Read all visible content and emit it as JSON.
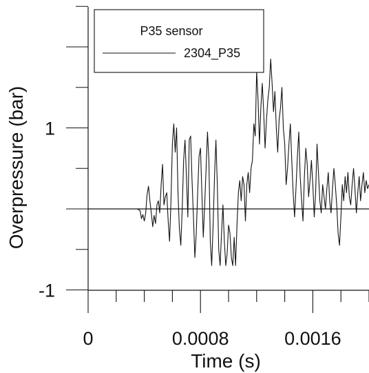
{
  "chart_data": {
    "type": "line",
    "xlabel": "Time (s)",
    "ylabel": "Overpressure (bar)",
    "xlim": [
      0,
      0.002
    ],
    "ylim": [
      -1,
      2.5
    ],
    "x_ticks": [
      0,
      0.0008,
      0.0016
    ],
    "x_tick_labels": [
      "0",
      "0.0008",
      "0.0016"
    ],
    "y_ticks": [
      -1,
      1
    ],
    "y_tick_labels": [
      "-1",
      "1"
    ],
    "reference_line_y": 0,
    "grid": false,
    "legend": {
      "position": "top-left",
      "title": "P35 sensor",
      "entries": [
        "2304_P35"
      ]
    },
    "series": [
      {
        "name": "2304_P35",
        "color": "#111111",
        "points": [
          [
            0.0,
            0.0
          ],
          [
            0.00035,
            0.0
          ],
          [
            0.00037,
            -0.02
          ],
          [
            0.00038,
            -0.12
          ],
          [
            0.00039,
            -0.07
          ],
          [
            0.0004,
            -0.15
          ],
          [
            0.00041,
            -0.05
          ],
          [
            0.00042,
            0.18
          ],
          [
            0.00043,
            0.28
          ],
          [
            0.00044,
            0.1
          ],
          [
            0.00045,
            -0.05
          ],
          [
            0.00046,
            -0.22
          ],
          [
            0.00047,
            -0.08
          ],
          [
            0.00048,
            -0.18
          ],
          [
            0.00049,
            0.05
          ],
          [
            0.0005,
            0.1
          ],
          [
            0.00051,
            -0.05
          ],
          [
            0.00052,
            0.3
          ],
          [
            0.00053,
            0.55
          ],
          [
            0.00054,
            0.05
          ],
          [
            0.00055,
            0.15
          ],
          [
            0.00056,
            0.2
          ],
          [
            0.00057,
            -0.15
          ],
          [
            0.00058,
            -0.4
          ],
          [
            0.00059,
            0.1
          ],
          [
            0.0006,
            0.8
          ],
          [
            0.00061,
            1.05
          ],
          [
            0.00062,
            0.7
          ],
          [
            0.00063,
            1.0
          ],
          [
            0.00064,
            0.2
          ],
          [
            0.00065,
            -0.25
          ],
          [
            0.00066,
            -0.45
          ],
          [
            0.00067,
            0.0
          ],
          [
            0.00068,
            0.6
          ],
          [
            0.00069,
            0.85
          ],
          [
            0.0007,
            0.4
          ],
          [
            0.00071,
            -0.1
          ],
          [
            0.00072,
            0.85
          ],
          [
            0.00073,
            0.9
          ],
          [
            0.00074,
            0.35
          ],
          [
            0.00075,
            -0.1
          ],
          [
            0.00076,
            -0.6
          ],
          [
            0.00077,
            -0.3
          ],
          [
            0.00078,
            0.2
          ],
          [
            0.00079,
            0.65
          ],
          [
            0.0008,
            0.75
          ],
          [
            0.00081,
            0.2
          ],
          [
            0.00082,
            -0.35
          ],
          [
            0.00083,
            0.05
          ],
          [
            0.00084,
            0.5
          ],
          [
            0.00085,
            0.95
          ],
          [
            0.00086,
            0.6
          ],
          [
            0.00087,
            -0.4
          ],
          [
            0.00088,
            -0.7
          ],
          [
            0.00089,
            -0.2
          ],
          [
            0.0009,
            0.4
          ],
          [
            0.00091,
            0.85
          ],
          [
            0.00092,
            0.3
          ],
          [
            0.00093,
            -0.5
          ],
          [
            0.00094,
            -0.7
          ],
          [
            0.00095,
            -0.3
          ],
          [
            0.00096,
            0.05
          ],
          [
            0.00097,
            -0.4
          ],
          [
            0.00098,
            -0.7
          ],
          [
            0.00099,
            -0.55
          ],
          [
            0.001,
            -0.2
          ],
          [
            0.00101,
            -0.3
          ],
          [
            0.00102,
            -0.6
          ],
          [
            0.00103,
            -0.7
          ],
          [
            0.00104,
            -0.35
          ],
          [
            0.00105,
            -0.7
          ],
          [
            0.00106,
            -0.2
          ],
          [
            0.00107,
            0.2
          ],
          [
            0.00108,
            0.35
          ],
          [
            0.00109,
            0.1
          ],
          [
            0.0011,
            0.4
          ],
          [
            0.00111,
            0.3
          ],
          [
            0.00112,
            -0.15
          ],
          [
            0.00113,
            0.3
          ],
          [
            0.00114,
            0.45
          ],
          [
            0.00115,
            0.2
          ],
          [
            0.00116,
            0.5
          ],
          [
            0.00117,
            0.6
          ],
          [
            0.00118,
            1.05
          ],
          [
            0.00119,
            0.9
          ],
          [
            0.0012,
            1.7
          ],
          [
            0.00121,
            1.35
          ],
          [
            0.00122,
            0.8
          ],
          [
            0.00123,
            1.25
          ],
          [
            0.00124,
            1.55
          ],
          [
            0.00125,
            1.2
          ],
          [
            0.00126,
            0.75
          ],
          [
            0.00127,
            1.1
          ],
          [
            0.00128,
            1.35
          ],
          [
            0.00129,
            1.5
          ],
          [
            0.0013,
            1.85
          ],
          [
            0.00131,
            1.55
          ],
          [
            0.00132,
            1.2
          ],
          [
            0.00133,
            1.45
          ],
          [
            0.00134,
            1.0
          ],
          [
            0.00135,
            0.7
          ],
          [
            0.00136,
            1.1
          ],
          [
            0.00137,
            1.25
          ],
          [
            0.00138,
            1.5
          ],
          [
            0.00139,
            1.0
          ],
          [
            0.0014,
            0.8
          ],
          [
            0.00141,
            0.3
          ],
          [
            0.00142,
            0.5
          ],
          [
            0.00143,
            0.8
          ],
          [
            0.00144,
            1.05
          ],
          [
            0.00145,
            0.6
          ],
          [
            0.00146,
            0.2
          ],
          [
            0.00147,
            -0.1
          ],
          [
            0.00148,
            0.25
          ],
          [
            0.00149,
            0.65
          ],
          [
            0.0015,
            0.95
          ],
          [
            0.00151,
            0.4
          ],
          [
            0.00152,
            0.1
          ],
          [
            0.00153,
            -0.15
          ],
          [
            0.00154,
            0.4
          ],
          [
            0.00155,
            0.75
          ],
          [
            0.00156,
            0.55
          ],
          [
            0.00157,
            0.15
          ],
          [
            0.00158,
            0.35
          ],
          [
            0.00159,
            0.6
          ],
          [
            0.0016,
            0.3
          ],
          [
            0.00161,
            -0.1
          ],
          [
            0.00162,
            0.2
          ],
          [
            0.00163,
            0.8
          ],
          [
            0.00164,
            0.45
          ],
          [
            0.00165,
            0.1
          ],
          [
            0.00166,
            -0.05
          ],
          [
            0.00167,
            0.3
          ],
          [
            0.00168,
            0.15
          ],
          [
            0.00169,
            0.0
          ],
          [
            0.0017,
            0.25
          ],
          [
            0.00171,
            0.45
          ],
          [
            0.00172,
            0.1
          ],
          [
            0.00173,
            -0.05
          ],
          [
            0.00174,
            0.25
          ],
          [
            0.00175,
            0.5
          ],
          [
            0.00176,
            0.3
          ],
          [
            0.00177,
            0.05
          ],
          [
            0.00178,
            -0.3
          ],
          [
            0.00179,
            -0.45
          ],
          [
            0.0018,
            -0.1
          ],
          [
            0.00181,
            0.3
          ],
          [
            0.00182,
            0.1
          ],
          [
            0.00183,
            0.4
          ],
          [
            0.00184,
            0.2
          ],
          [
            0.00185,
            0.45
          ],
          [
            0.00186,
            0.15
          ],
          [
            0.00187,
            0.05
          ],
          [
            0.00188,
            0.3
          ],
          [
            0.00189,
            0.5
          ],
          [
            0.0019,
            0.25
          ],
          [
            0.00191,
            -0.05
          ],
          [
            0.00192,
            0.2
          ],
          [
            0.00193,
            0.4
          ],
          [
            0.00194,
            0.1
          ],
          [
            0.00195,
            0.3
          ],
          [
            0.00196,
            0.45
          ],
          [
            0.00197,
            0.2
          ],
          [
            0.00198,
            0.35
          ],
          [
            0.00199,
            0.25
          ],
          [
            0.002,
            0.3
          ]
        ]
      }
    ]
  }
}
